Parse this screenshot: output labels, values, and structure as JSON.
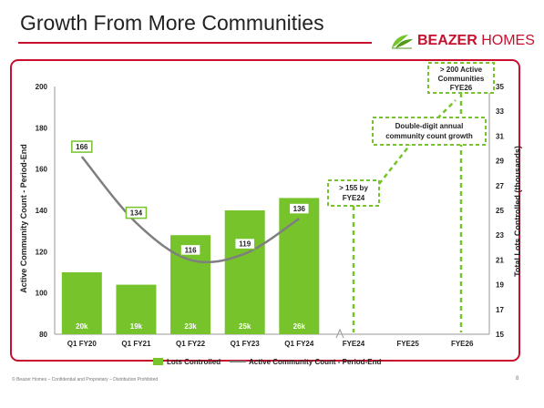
{
  "header": {
    "title": "Growth From More Communities",
    "logo_text_bold": "BEAZER",
    "logo_text_light": " HOMES"
  },
  "footer": {
    "text": "© Beazer Homes – Confidential and Proprietary – Distribution Prohibited",
    "page": "8"
  },
  "colors": {
    "accent_red": "#c8102e",
    "bar_green": "#76c32b",
    "line_gray": "#7f7f7f"
  },
  "chart_data": {
    "type": "bar",
    "categories": [
      "Q1 FY20",
      "Q1 FY21",
      "Q1 FY22",
      "Q1 FY23",
      "Q1 FY24",
      "FYE24",
      "FYE25",
      "FYE26"
    ],
    "left_axis": {
      "label": "Active Community Count - Period-End",
      "ylim": [
        80,
        200
      ],
      "ticks": [
        80,
        100,
        120,
        140,
        160,
        180,
        200
      ]
    },
    "right_axis": {
      "label": "Total Lots Controlled (thousands)",
      "ylim": [
        15,
        35
      ],
      "ticks": [
        15,
        17,
        19,
        21,
        23,
        25,
        27,
        29,
        31,
        33,
        35
      ]
    },
    "series": [
      {
        "name": "Lots Controlled",
        "type": "bar",
        "axis": "right",
        "values": [
          20,
          19,
          23,
          25,
          26,
          null,
          null,
          null
        ],
        "labels": [
          "20k",
          "19k",
          "23k",
          "25k",
          "26k",
          "",
          "",
          ""
        ]
      },
      {
        "name": "Active Community Count - Period-End",
        "type": "line",
        "axis": "left",
        "values": [
          166,
          134,
          116,
          119,
          136,
          null,
          null,
          null
        ],
        "labels": [
          "166",
          "134",
          "116",
          "119",
          "136",
          "",
          "",
          ""
        ]
      }
    ],
    "annotations": [
      {
        "category": "FYE24",
        "text_lines": [
          "> 155 by",
          "FYE24"
        ]
      },
      {
        "category": "FYE26",
        "text_lines": [
          "> 200 Active",
          "Communities",
          "FYE26"
        ]
      },
      {
        "text_lines": [
          "Double-digit annual",
          "community count growth"
        ]
      }
    ],
    "legend": {
      "placement": "bottom"
    },
    "grid": false
  }
}
